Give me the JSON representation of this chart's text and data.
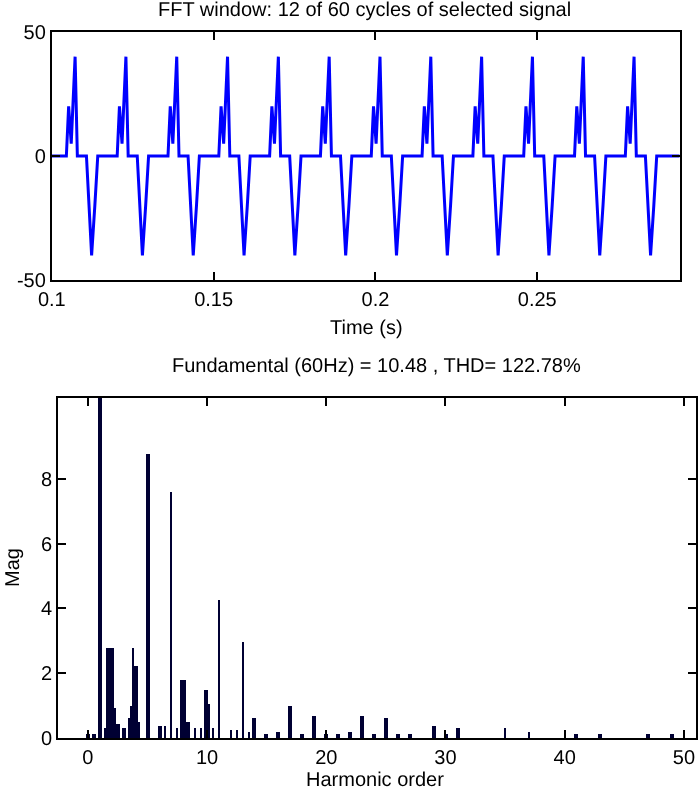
{
  "chart_data": [
    {
      "type": "line",
      "title": "FFT window: 12 of 60 cycles of selected signal",
      "xlabel": "Time (s)",
      "color": "#0000ff",
      "xlim": [
        0.1,
        0.294
      ],
      "ylim": [
        -50,
        50
      ],
      "xticks": [
        0.1,
        0.15,
        0.2,
        0.25
      ],
      "yticks": [
        -50,
        0,
        50
      ],
      "x": [
        0.1,
        0.1045,
        0.1052,
        0.106,
        0.1072,
        0.1079,
        0.1107,
        0.1123,
        0.1133,
        0.1142,
        0.1202,
        0.1209,
        0.1217,
        0.1229,
        0.1236,
        0.1264,
        0.128,
        0.129,
        0.1299,
        0.1359,
        0.1366,
        0.1374,
        0.1386,
        0.1393,
        0.1421,
        0.1437,
        0.1447,
        0.1456,
        0.1516,
        0.1523,
        0.1531,
        0.1543,
        0.155,
        0.1578,
        0.1594,
        0.1604,
        0.1613,
        0.1673,
        0.168,
        0.1688,
        0.17,
        0.1707,
        0.1735,
        0.1751,
        0.1761,
        0.177,
        0.183,
        0.1837,
        0.1845,
        0.1857,
        0.1864,
        0.1892,
        0.1908,
        0.1918,
        0.1927,
        0.1987,
        0.1994,
        0.2002,
        0.2014,
        0.2021,
        0.2049,
        0.2065,
        0.2075,
        0.2084,
        0.2144,
        0.2151,
        0.2159,
        0.2171,
        0.2178,
        0.2206,
        0.2222,
        0.2232,
        0.2241,
        0.2301,
        0.2308,
        0.2316,
        0.2328,
        0.2335,
        0.2363,
        0.2379,
        0.2389,
        0.2398,
        0.2458,
        0.2465,
        0.2473,
        0.2485,
        0.2492,
        0.252,
        0.2536,
        0.2546,
        0.2555,
        0.2615,
        0.2622,
        0.263,
        0.2642,
        0.2649,
        0.2677,
        0.2693,
        0.2703,
        0.2712,
        0.2772,
        0.2779,
        0.2787,
        0.2799,
        0.2806,
        0.2834,
        0.285,
        0.286,
        0.2869,
        0.294
      ],
      "values": [
        0,
        0,
        20,
        5,
        40,
        0,
        0,
        -40,
        -20,
        0,
        0,
        20,
        5,
        40,
        0,
        0,
        -40,
        -20,
        0,
        0,
        20,
        5,
        40,
        0,
        0,
        -40,
        -20,
        0,
        0,
        20,
        5,
        40,
        0,
        0,
        -40,
        -20,
        0,
        0,
        20,
        5,
        40,
        0,
        0,
        -40,
        -20,
        0,
        0,
        20,
        5,
        40,
        0,
        0,
        -40,
        -20,
        0,
        0,
        20,
        5,
        40,
        0,
        0,
        -40,
        -20,
        0,
        0,
        20,
        5,
        40,
        0,
        0,
        -40,
        -20,
        0,
        0,
        20,
        5,
        40,
        0,
        0,
        -40,
        -20,
        0,
        0,
        20,
        5,
        40,
        0,
        0,
        -40,
        -20,
        0,
        0,
        20,
        5,
        40,
        0,
        0,
        -40,
        -20,
        0,
        0,
        20,
        5,
        40,
        0,
        0,
        -40,
        -20,
        0,
        0
      ]
    },
    {
      "type": "bar",
      "title": "Fundamental (60Hz) = 10.48 , THD= 122.78%",
      "xlabel": "Harmonic order",
      "ylabel": "Mag",
      "color": "#000033",
      "xlim": [
        -2.5,
        51
      ],
      "ylim": [
        0,
        10.5
      ],
      "xticks": [
        0,
        10,
        20,
        30,
        40,
        50
      ],
      "yticks": [
        0,
        2,
        4,
        6,
        8
      ],
      "x": [
        0,
        0.5,
        1,
        1.5,
        1.75,
        2,
        2.2,
        2.5,
        3,
        3.5,
        3.6,
        3.8,
        4,
        4.3,
        5,
        6,
        6.5,
        7,
        7.5,
        7.8,
        8.1,
        8.4,
        9,
        9.5,
        9.9,
        10.1,
        10.5,
        11,
        12,
        12.5,
        13,
        13.5,
        14,
        15,
        16,
        17,
        18,
        19,
        20,
        21,
        22,
        23,
        24,
        25,
        26,
        27,
        29,
        30,
        31,
        33,
        35,
        37,
        41,
        43,
        47,
        49
      ],
      "values": [
        0.1,
        0.1,
        10.48,
        0.3,
        2.8,
        2.75,
        0.9,
        0.4,
        0.3,
        0.6,
        1.0,
        2.8,
        2.25,
        0.5,
        8.8,
        0.35,
        0.35,
        7.6,
        0.3,
        1.8,
        1.8,
        0.5,
        0.3,
        0.3,
        1.5,
        1.05,
        0.3,
        4.25,
        0.25,
        0.25,
        2.95,
        0.2,
        0.6,
        0.15,
        0.2,
        1.0,
        0.1,
        0.65,
        0.15,
        0.1,
        0.2,
        0.65,
        0.1,
        0.6,
        0.1,
        0.1,
        0.35,
        0.1,
        0.3,
        null,
        0.3,
        0.2,
        0.1,
        0.1,
        0.1,
        0.1
      ]
    }
  ]
}
